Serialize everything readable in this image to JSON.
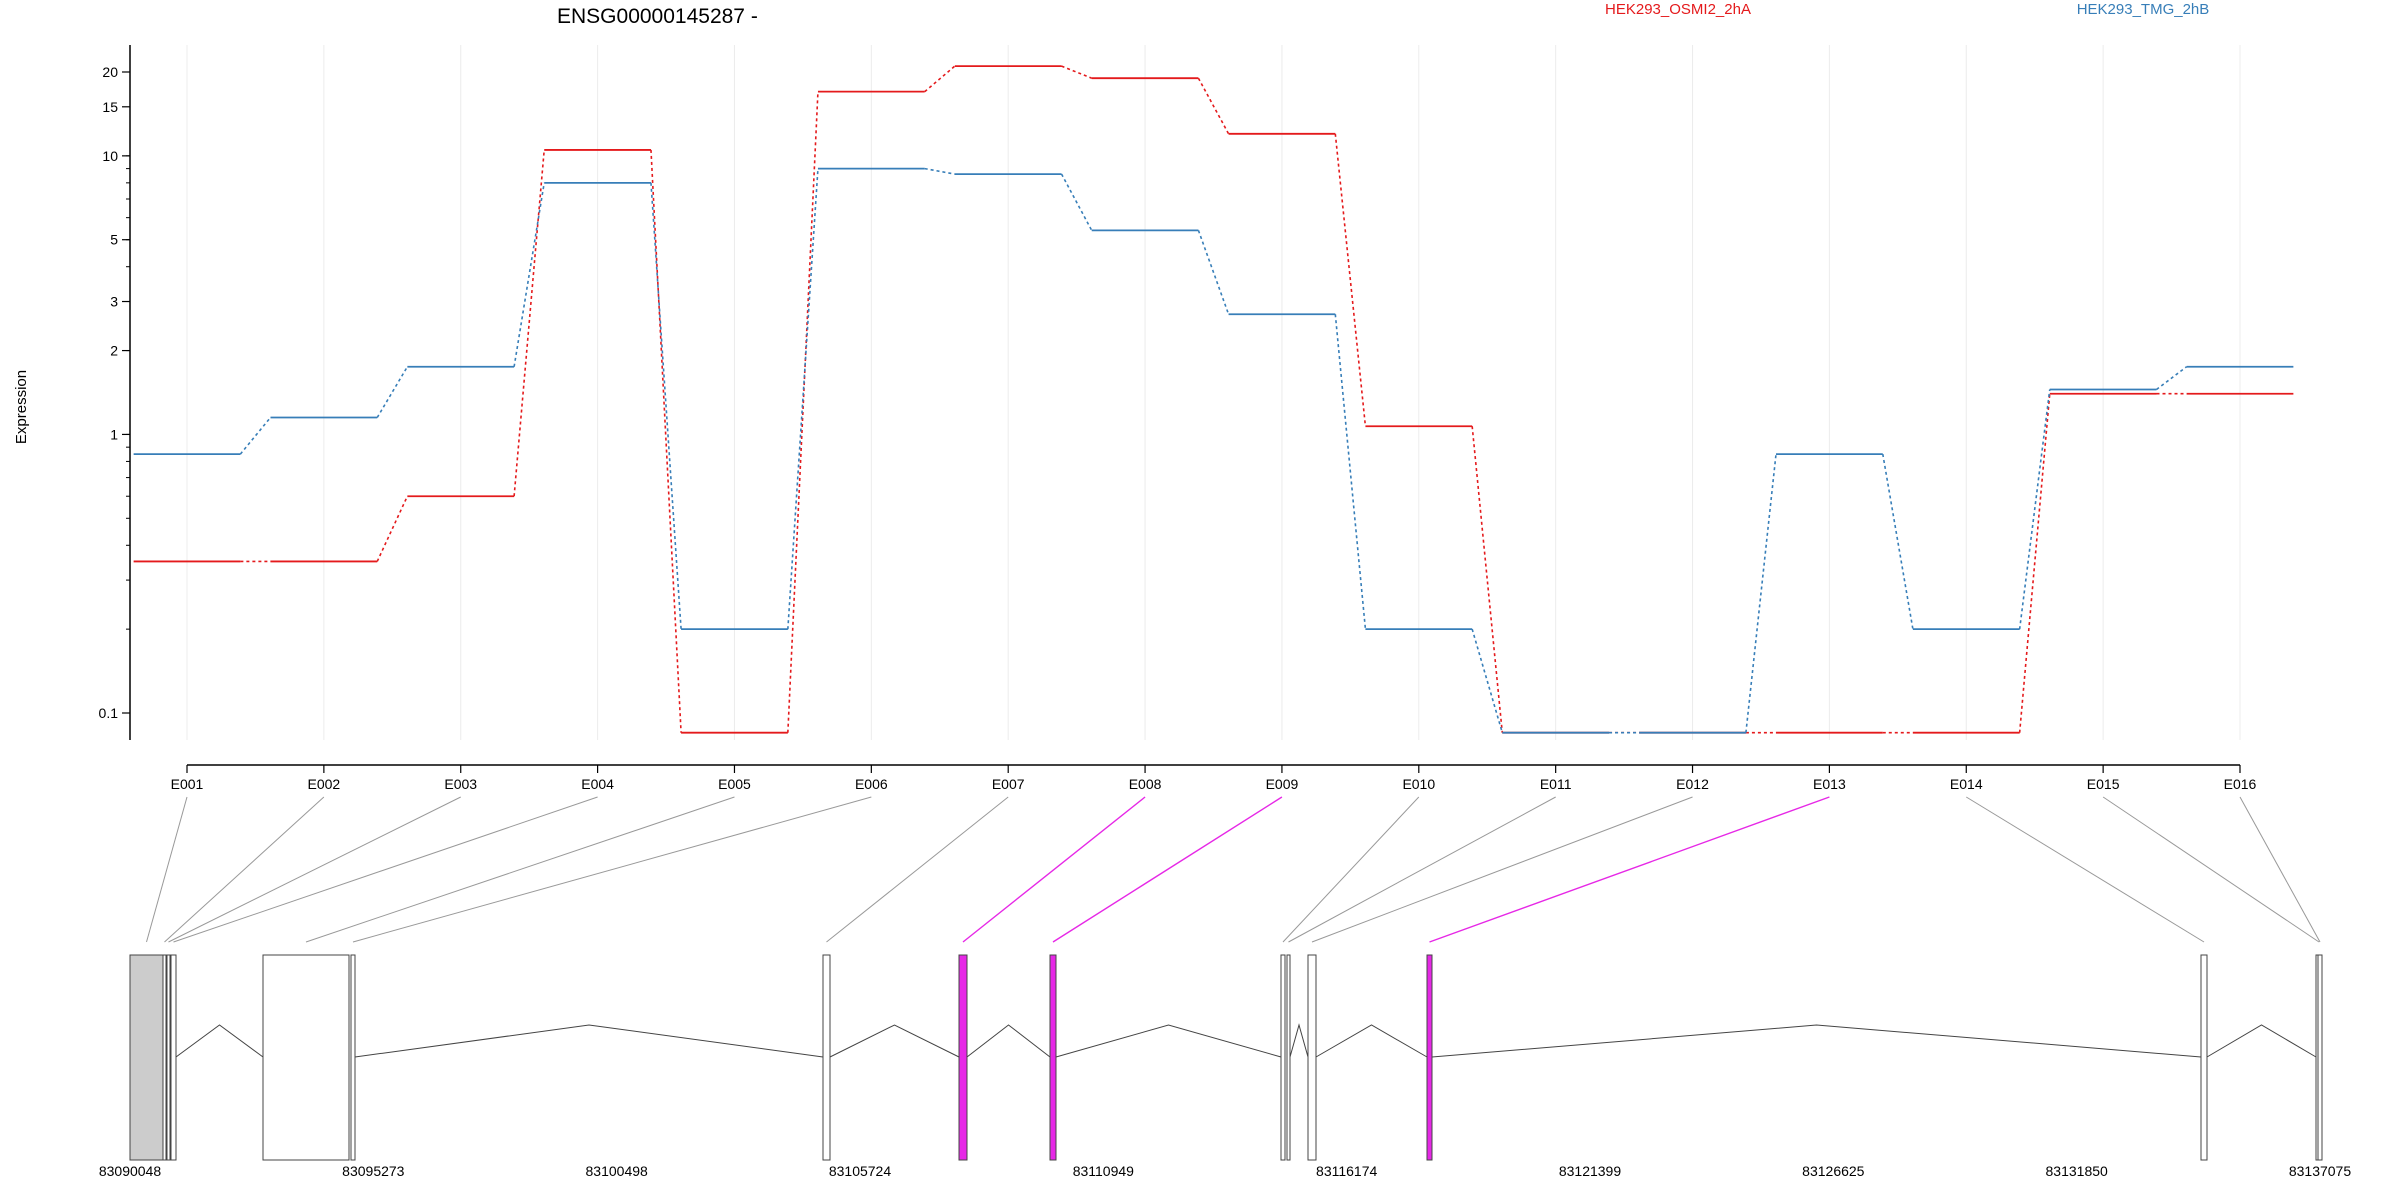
{
  "chart_data": {
    "type": "line",
    "title": "ENSG00000145287 -",
    "xlabel": "",
    "ylabel": "Expression",
    "y_scale": "log",
    "ylim": [
      0.08,
      25
    ],
    "y_ticks": [
      {
        "value": 0.1,
        "label": "0.1"
      },
      {
        "value": 1,
        "label": "1"
      },
      {
        "value": 2,
        "label": "2"
      },
      {
        "value": 3,
        "label": "3"
      },
      {
        "value": 5,
        "label": "5"
      },
      {
        "value": 10,
        "label": "10"
      },
      {
        "value": 15,
        "label": "15"
      },
      {
        "value": 20,
        "label": "20"
      }
    ],
    "legend_position": "top",
    "grid": "vertical",
    "categories": [
      "E001",
      "E002",
      "E003",
      "E004",
      "E005",
      "E006",
      "E007",
      "E008",
      "E009",
      "E010",
      "E011",
      "E012",
      "E013",
      "E014",
      "E015",
      "E016"
    ],
    "series": [
      {
        "name": "HEK293_OSMI2_2hA",
        "color": "#e41a1c",
        "values": [
          0.35,
          0.35,
          0.6,
          10.5,
          0.085,
          17.0,
          21.0,
          19.0,
          12.0,
          1.07,
          0.085,
          0.085,
          0.085,
          0.085,
          1.4,
          1.4
        ]
      },
      {
        "name": "HEK293_TMG_2hB",
        "color": "#377eb8",
        "values": [
          0.85,
          1.15,
          1.75,
          8.0,
          0.2,
          9.0,
          8.6,
          5.4,
          2.7,
          0.2,
          0.085,
          0.085,
          0.85,
          0.2,
          1.45,
          1.75
        ]
      }
    ],
    "gene_model": {
      "x_ticks": [
        "83090048",
        "83095273",
        "83100498",
        "83105724",
        "83110949",
        "83116174",
        "83121399",
        "83126625",
        "83131850",
        "83137075"
      ],
      "highlight_color": "#e628e6",
      "exon_highlighted": [
        false,
        false,
        false,
        false,
        false,
        false,
        false,
        true,
        true,
        false,
        false,
        false,
        true,
        false,
        false,
        false
      ]
    }
  }
}
